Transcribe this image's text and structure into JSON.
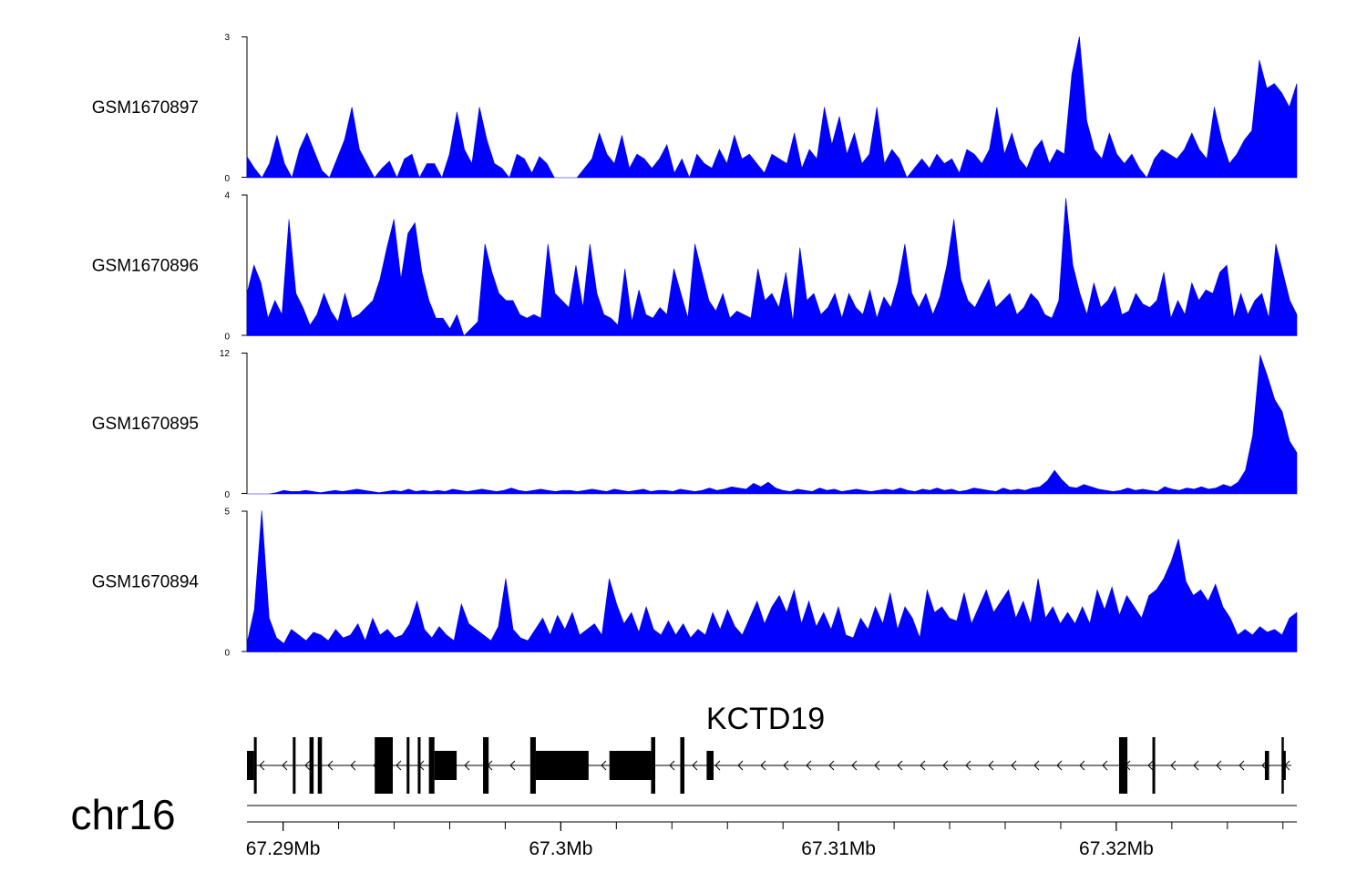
{
  "chart_data": {
    "type": "area",
    "chromosome": "chr16",
    "gene": {
      "name": "KCTD19",
      "strand": "-"
    },
    "x_range_mb": [
      67.2887,
      67.3265
    ],
    "x_ticks": [
      {
        "value": 67.29,
        "label": "67.29Mb"
      },
      {
        "value": 67.3,
        "label": "67.3Mb"
      },
      {
        "value": 67.31,
        "label": "67.31Mb"
      },
      {
        "value": 67.32,
        "label": "67.32Mb"
      }
    ],
    "tracks": [
      {
        "name": "GSM1670897",
        "ylim": [
          0,
          3
        ],
        "ymin_label": "0",
        "ymax_label": "3",
        "values": [
          0.45,
          0.2,
          0,
          0.3,
          0.9,
          0.3,
          0,
          0.6,
          0.95,
          0.55,
          0.15,
          0,
          0.4,
          0.8,
          1.5,
          0.6,
          0.3,
          0,
          0.2,
          0.35,
          0,
          0.4,
          0.5,
          0,
          0.3,
          0.3,
          0,
          0.5,
          1.4,
          0.6,
          0.3,
          1.5,
          0.8,
          0.3,
          0.2,
          0,
          0.5,
          0.4,
          0.1,
          0.45,
          0.3,
          0,
          0,
          0,
          0,
          0.2,
          0.4,
          0.95,
          0.5,
          0.3,
          0.9,
          0.2,
          0.5,
          0.4,
          0.2,
          0.4,
          0.7,
          0.1,
          0.4,
          0,
          0.5,
          0.3,
          0.2,
          0.6,
          0.3,
          0.9,
          0.4,
          0.5,
          0.3,
          0.1,
          0.5,
          0.4,
          0.3,
          0.95,
          0.2,
          0.6,
          0.4,
          1.5,
          0.7,
          1.3,
          0.5,
          0.95,
          0.3,
          0.5,
          1.5,
          0.3,
          0.6,
          0.4,
          0,
          0.2,
          0.4,
          0.2,
          0.5,
          0.3,
          0.4,
          0.1,
          0.6,
          0.5,
          0.3,
          0.6,
          1.5,
          0.5,
          0.95,
          0.4,
          0.2,
          0.6,
          0.8,
          0.3,
          0.6,
          0.5,
          2.2,
          3.0,
          1.2,
          0.6,
          0.4,
          0.95,
          0.5,
          0.3,
          0.5,
          0.2,
          0,
          0.4,
          0.6,
          0.5,
          0.4,
          0.6,
          0.95,
          0.6,
          0.4,
          1.5,
          0.8,
          0.3,
          0.5,
          0.8,
          1.0,
          2.5,
          1.9,
          2.0,
          1.8,
          1.5,
          2.0
        ]
      },
      {
        "name": "GSM1670896",
        "ylim": [
          0,
          4
        ],
        "ymin_label": "0",
        "ymax_label": "4",
        "values": [
          1.2,
          2.0,
          1.5,
          0.5,
          1.0,
          0.6,
          3.3,
          1.2,
          0.8,
          0.3,
          0.6,
          1.2,
          0.7,
          0.4,
          1.2,
          0.5,
          0.6,
          0.8,
          1.0,
          1.6,
          2.5,
          3.3,
          1.6,
          2.9,
          3.2,
          1.8,
          1.0,
          0.5,
          0.5,
          0.2,
          0.6,
          0,
          0.2,
          0.4,
          2.6,
          1.8,
          1.2,
          1.0,
          1.0,
          0.6,
          0.5,
          0.6,
          0.5,
          2.6,
          1.2,
          1.0,
          0.8,
          2.0,
          0.8,
          2.6,
          1.2,
          0.6,
          0.5,
          0.3,
          1.9,
          0.4,
          1.3,
          0.6,
          0.5,
          0.8,
          0.6,
          1.9,
          1.2,
          0.5,
          2.6,
          1.8,
          1.0,
          0.7,
          1.2,
          0.5,
          0.7,
          0.6,
          0.5,
          1.9,
          1.0,
          1.2,
          0.8,
          1.8,
          0.4,
          2.5,
          1.0,
          1.2,
          0.6,
          0.8,
          1.2,
          0.5,
          1.2,
          0.8,
          0.6,
          1.3,
          0.5,
          1.1,
          0.8,
          1.5,
          2.6,
          1.2,
          0.8,
          1.2,
          0.6,
          1.1,
          2.0,
          3.3,
          1.6,
          1.0,
          0.8,
          1.2,
          1.6,
          0.8,
          1.0,
          1.2,
          0.6,
          0.8,
          1.2,
          1.0,
          0.6,
          0.5,
          1.0,
          3.9,
          2.0,
          1.2,
          0.6,
          1.5,
          0.8,
          1.0,
          1.4,
          0.6,
          0.7,
          1.2,
          0.9,
          0.8,
          1.0,
          1.8,
          0.5,
          1.0,
          0.6,
          1.5,
          1.0,
          1.3,
          1.2,
          1.8,
          2.0,
          0.5,
          1.2,
          0.6,
          1.0,
          1.2,
          0.5,
          2.6,
          1.8,
          1.0,
          0.6
        ]
      },
      {
        "name": "GSM1670895",
        "ylim": [
          0,
          12
        ],
        "ymin_label": "0",
        "ymax_label": "12",
        "values": [
          0,
          0,
          0,
          0,
          0.1,
          0.3,
          0.2,
          0.2,
          0.3,
          0.2,
          0.1,
          0.2,
          0.3,
          0.2,
          0.3,
          0.4,
          0.3,
          0.2,
          0.1,
          0.2,
          0.3,
          0.2,
          0.4,
          0.2,
          0.3,
          0.2,
          0.3,
          0.2,
          0.4,
          0.3,
          0.2,
          0.3,
          0.4,
          0.3,
          0.2,
          0.3,
          0.5,
          0.3,
          0.2,
          0.3,
          0.4,
          0.3,
          0.2,
          0.3,
          0.3,
          0.2,
          0.3,
          0.4,
          0.3,
          0.2,
          0.4,
          0.3,
          0.2,
          0.3,
          0.4,
          0.2,
          0.3,
          0.3,
          0.2,
          0.4,
          0.3,
          0.2,
          0.3,
          0.5,
          0.3,
          0.4,
          0.6,
          0.5,
          0.4,
          0.9,
          0.6,
          1.0,
          0.5,
          0.3,
          0.2,
          0.4,
          0.3,
          0.2,
          0.5,
          0.3,
          0.4,
          0.2,
          0.3,
          0.4,
          0.3,
          0.2,
          0.3,
          0.4,
          0.3,
          0.5,
          0.3,
          0.2,
          0.4,
          0.3,
          0.5,
          0.3,
          0.4,
          0.2,
          0.3,
          0.5,
          0.4,
          0.3,
          0.2,
          0.5,
          0.3,
          0.4,
          0.3,
          0.5,
          0.6,
          1.1,
          2.0,
          1.2,
          0.6,
          0.5,
          0.8,
          0.6,
          0.4,
          0.3,
          0.2,
          0.3,
          0.5,
          0.3,
          0.4,
          0.3,
          0.2,
          0.6,
          0.4,
          0.3,
          0.5,
          0.4,
          0.6,
          0.4,
          0.5,
          0.8,
          0.6,
          1.0,
          2.0,
          5.0,
          11.8,
          10.0,
          8.0,
          7.0,
          4.5,
          3.5
        ]
      },
      {
        "name": "GSM1670894",
        "ylim": [
          0,
          5
        ],
        "ymin_label": "0",
        "ymax_label": "5",
        "values": [
          0.3,
          1.5,
          5.0,
          1.2,
          0.5,
          0.3,
          0.8,
          0.6,
          0.4,
          0.7,
          0.6,
          0.4,
          0.8,
          0.5,
          0.6,
          1.0,
          0.4,
          1.2,
          0.6,
          0.8,
          0.5,
          0.6,
          1.0,
          1.8,
          0.8,
          0.5,
          0.9,
          0.6,
          0.4,
          1.7,
          1.0,
          0.8,
          0.6,
          0.4,
          0.9,
          2.6,
          0.8,
          0.5,
          0.4,
          0.8,
          1.2,
          0.6,
          1.3,
          0.8,
          1.4,
          0.6,
          0.8,
          1.0,
          0.6,
          2.6,
          1.7,
          1.0,
          1.4,
          0.7,
          1.6,
          0.8,
          0.6,
          1.1,
          0.6,
          1.0,
          0.5,
          0.8,
          0.6,
          1.4,
          0.8,
          1.5,
          0.9,
          0.6,
          1.2,
          1.8,
          1.0,
          1.6,
          2.0,
          1.4,
          2.2,
          1.0,
          1.8,
          0.9,
          1.4,
          0.8,
          1.6,
          0.6,
          0.5,
          1.2,
          0.8,
          1.6,
          1.0,
          2.1,
          0.8,
          1.6,
          1.2,
          0.5,
          2.2,
          1.4,
          1.6,
          1.2,
          1.1,
          2.1,
          1.0,
          1.6,
          2.2,
          1.4,
          1.8,
          2.2,
          1.2,
          1.8,
          1.0,
          2.6,
          1.2,
          1.6,
          1.0,
          1.4,
          1.0,
          1.6,
          1.0,
          2.2,
          1.5,
          2.3,
          1.3,
          2.0,
          1.6,
          1.2,
          2.0,
          2.2,
          2.6,
          3.2,
          4.0,
          2.5,
          2.0,
          2.2,
          1.8,
          2.4,
          1.6,
          1.2,
          0.6,
          0.8,
          0.6,
          0.9,
          0.7,
          0.8,
          0.6,
          1.2,
          1.4
        ]
      }
    ],
    "gene_model": {
      "tx_start_mb": 67.2887,
      "tx_end_mb": 67.3263,
      "exons": [
        {
          "start": 67.2887,
          "end": 67.28895,
          "type": "utr"
        },
        {
          "start": 67.28895,
          "end": 67.28905,
          "type": "cds"
        },
        {
          "start": 67.29035,
          "end": 67.29045,
          "type": "cds"
        },
        {
          "start": 67.29095,
          "end": 67.2911,
          "type": "cds"
        },
        {
          "start": 67.29125,
          "end": 67.2914,
          "type": "cds"
        },
        {
          "start": 67.2933,
          "end": 67.29395,
          "type": "cds"
        },
        {
          "start": 67.29445,
          "end": 67.29455,
          "type": "cds"
        },
        {
          "start": 67.29485,
          "end": 67.29495,
          "type": "cds"
        },
        {
          "start": 67.29525,
          "end": 67.29545,
          "type": "cds"
        },
        {
          "start": 67.29545,
          "end": 67.29625,
          "type": "utr"
        },
        {
          "start": 67.2972,
          "end": 67.2974,
          "type": "cds"
        },
        {
          "start": 67.2989,
          "end": 67.2991,
          "type": "cds"
        },
        {
          "start": 67.2991,
          "end": 67.301,
          "type": "utr"
        },
        {
          "start": 67.30175,
          "end": 67.30325,
          "type": "utr"
        },
        {
          "start": 67.30325,
          "end": 67.3034,
          "type": "cds"
        },
        {
          "start": 67.3043,
          "end": 67.30445,
          "type": "cds"
        },
        {
          "start": 67.30525,
          "end": 67.3055,
          "type": "utr"
        },
        {
          "start": 67.3201,
          "end": 67.3204,
          "type": "cds"
        },
        {
          "start": 67.3213,
          "end": 67.3214,
          "type": "cds"
        },
        {
          "start": 67.32535,
          "end": 67.3255,
          "type": "utr"
        },
        {
          "start": 67.32595,
          "end": 67.32602,
          "type": "cds"
        },
        {
          "start": 67.32602,
          "end": 67.3261,
          "type": "utr"
        }
      ]
    }
  }
}
